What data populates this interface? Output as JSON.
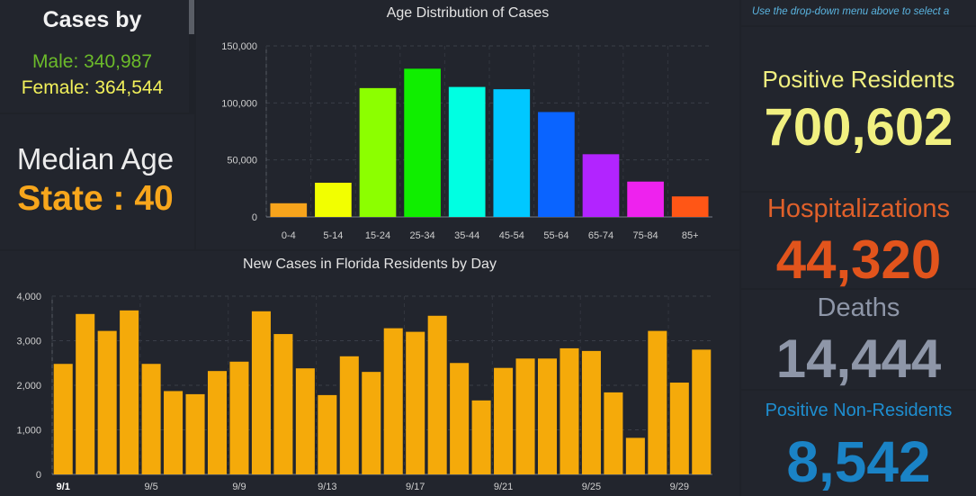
{
  "cases_panel": {
    "title": "Cases by",
    "male": "Male: 340,987",
    "female": "Female: 364,544"
  },
  "median_panel": {
    "label": "Median Age",
    "value": "State : 40"
  },
  "hint": "Use the drop-down menu above to select a",
  "positive_residents": {
    "label": "Positive Residents",
    "value": "700,602"
  },
  "hospitalizations": {
    "label": "Hospitalizations",
    "value": "44,320"
  },
  "deaths": {
    "label": "Deaths",
    "value": "14,444"
  },
  "positive_nonresidents": {
    "label": "Positive Non-Residents",
    "value": "8,542"
  },
  "colors": {
    "background": "#1f2229",
    "panel": "#22252d",
    "daily_bar": "#f5aa0a"
  },
  "chart_data": [
    {
      "type": "bar",
      "title": "Age Distribution of Cases",
      "categories": [
        "0-4",
        "5-14",
        "15-24",
        "25-34",
        "35-44",
        "45-54",
        "55-64",
        "65-74",
        "75-84",
        "85+"
      ],
      "values": [
        12000,
        30000,
        113000,
        130000,
        114000,
        112000,
        92000,
        55000,
        31000,
        18000
      ],
      "colors": [
        "#f7a41c",
        "#f2ff00",
        "#8cff00",
        "#10ee00",
        "#00ffe2",
        "#00c8ff",
        "#0a64ff",
        "#b224ff",
        "#ee22ee",
        "#ff5616"
      ],
      "ylim": [
        0,
        150000
      ],
      "yticks": [
        0,
        50000,
        100000,
        150000
      ],
      "ytick_labels": [
        "0",
        "50,000",
        "100,000",
        "150,000"
      ],
      "grid": true
    },
    {
      "type": "bar",
      "title": "New Cases in Florida Residents by Day",
      "categories": [
        "9/1",
        "9/2",
        "9/3",
        "9/4",
        "9/5",
        "9/6",
        "9/7",
        "9/8",
        "9/9",
        "9/10",
        "9/11",
        "9/12",
        "9/13",
        "9/14",
        "9/15",
        "9/16",
        "9/17",
        "9/18",
        "9/19",
        "9/20",
        "9/21",
        "9/22",
        "9/23",
        "9/24",
        "9/25",
        "9/26",
        "9/27",
        "9/28",
        "9/29",
        "9/30"
      ],
      "values": [
        2480,
        3600,
        3220,
        3680,
        2480,
        1870,
        1800,
        2320,
        2530,
        3660,
        3150,
        2380,
        1780,
        2650,
        2300,
        3280,
        3200,
        3560,
        2500,
        1660,
        2390,
        2600,
        2600,
        2830,
        2770,
        1840,
        820,
        3220,
        2060,
        2800
      ],
      "xtick_labels": [
        "9/1",
        "9/5",
        "9/9",
        "9/13",
        "9/17",
        "9/21",
        "9/25",
        "9/29"
      ],
      "xtick_index": [
        0,
        4,
        8,
        12,
        16,
        20,
        24,
        28
      ],
      "ylim": [
        0,
        4000
      ],
      "yticks": [
        0,
        1000,
        2000,
        3000,
        4000
      ],
      "ytick_labels": [
        "0",
        "1,000",
        "2,000",
        "3,000",
        "4,000"
      ],
      "grid": true
    }
  ]
}
